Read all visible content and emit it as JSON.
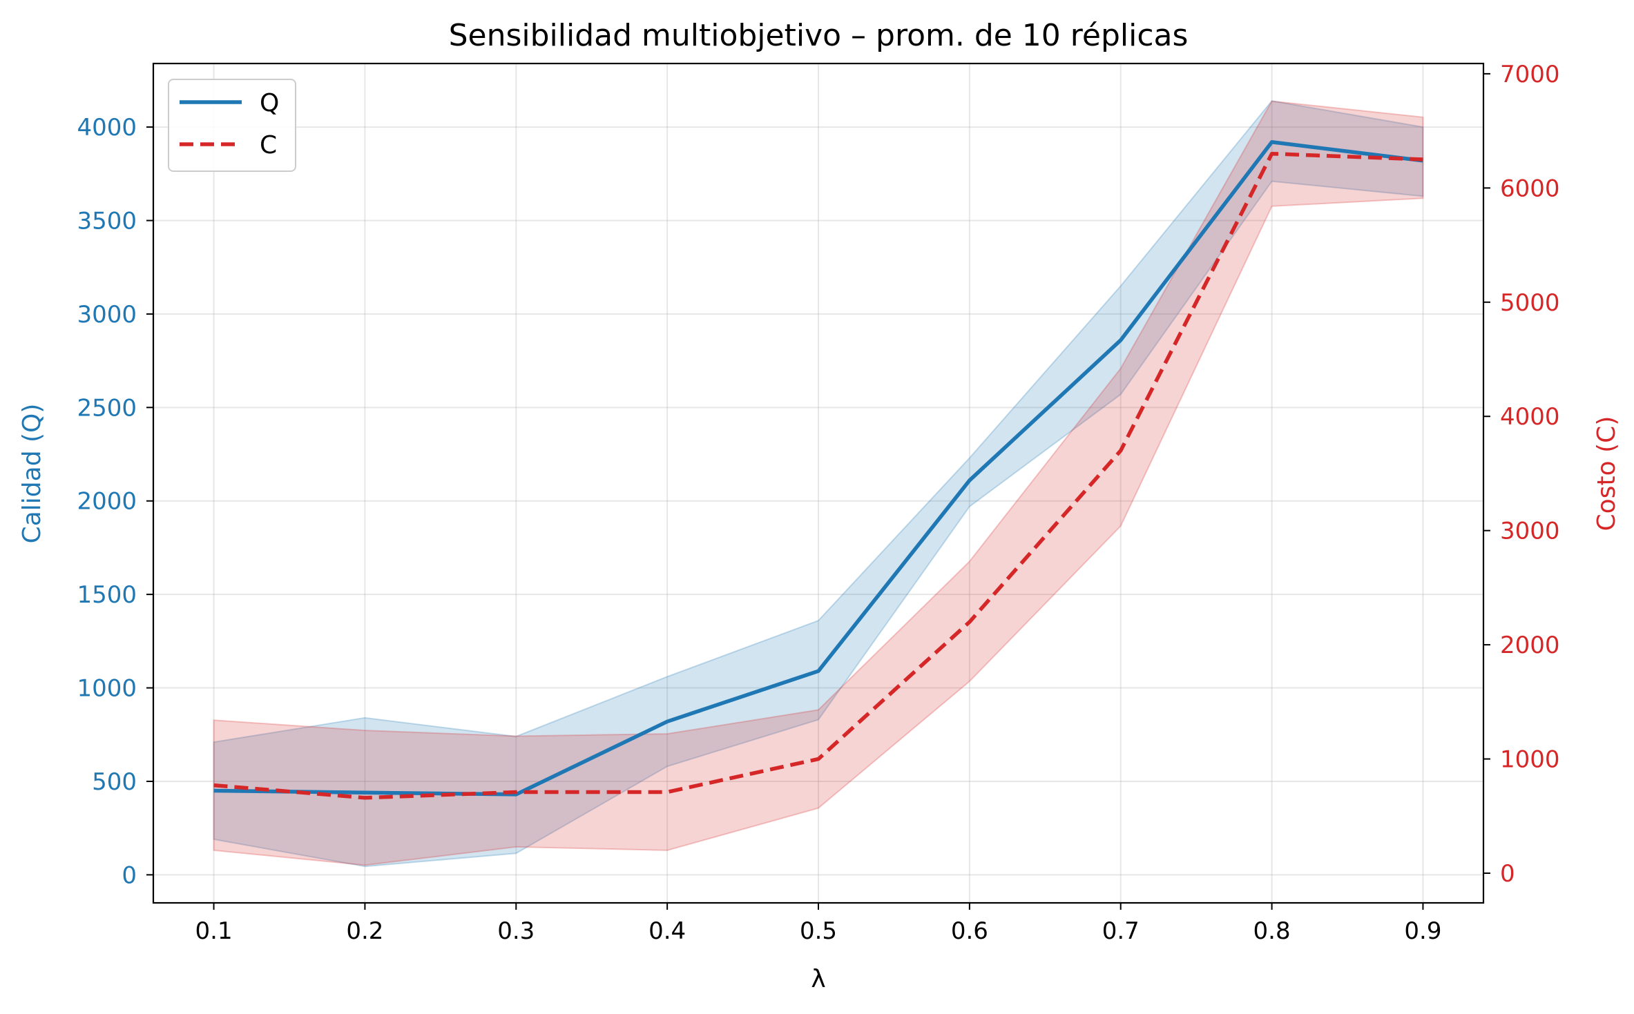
{
  "chart_data": {
    "type": "line",
    "title": "Sensibilidad multiobjetivo – prom. de 10 réplicas",
    "xlabel": "λ",
    "x": [
      0.1,
      0.2,
      0.3,
      0.4,
      0.5,
      0.6,
      0.7,
      0.8,
      0.9
    ],
    "x_ticks": [
      "0.1",
      "0.2",
      "0.3",
      "0.4",
      "0.5",
      "0.6",
      "0.7",
      "0.8",
      "0.9"
    ],
    "xlim": [
      0.06,
      0.94
    ],
    "grid": true,
    "legend_position": "top-left",
    "left_axis": {
      "label": "Calidad (Q)",
      "color": "#1f77b4",
      "ylim": [
        -150,
        4340
      ],
      "ticks": [
        0,
        500,
        1000,
        1500,
        2000,
        2500,
        3000,
        3500,
        4000
      ]
    },
    "right_axis": {
      "label": "Costo (C)",
      "color": "#d62728",
      "ylim": [
        -260,
        7090
      ],
      "ticks": [
        0,
        1000,
        2000,
        3000,
        4000,
        5000,
        6000,
        7000
      ]
    },
    "series": [
      {
        "name": "Q",
        "axis": "left",
        "color": "#1f77b4",
        "style": "solid",
        "values": [
          450,
          440,
          430,
          820,
          1090,
          2110,
          2860,
          3920,
          3820
        ],
        "band_lower": [
          190,
          45,
          115,
          580,
          830,
          1970,
          2570,
          3710,
          3630
        ],
        "band_upper": [
          710,
          840,
          740,
          1060,
          1360,
          2230,
          3150,
          4140,
          4000
        ]
      },
      {
        "name": "C",
        "axis": "right",
        "color": "#d62728",
        "style": "dashed",
        "values": [
          770,
          660,
          710,
          710,
          1000,
          2200,
          3700,
          6300,
          6250
        ],
        "band_lower": [
          200,
          70,
          230,
          200,
          570,
          1680,
          3040,
          5840,
          5910
        ],
        "band_upper": [
          1340,
          1250,
          1200,
          1220,
          1430,
          2730,
          4420,
          6760,
          6620
        ]
      }
    ]
  }
}
